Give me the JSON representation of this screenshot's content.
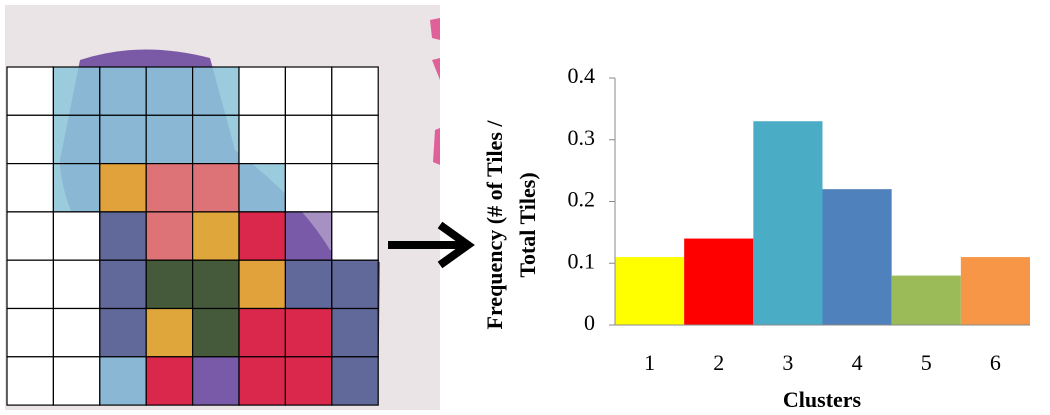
{
  "chart_data": {
    "type": "bar",
    "ylabel": [
      "Frequency (# of Tiles /",
      "Total Tiles)"
    ],
    "xlabel": "Clusters",
    "categories": [
      "1",
      "2",
      "3",
      "4",
      "5",
      "6"
    ],
    "values": [
      0.11,
      0.14,
      0.33,
      0.22,
      0.08,
      0.11
    ],
    "colors": [
      "#ffff00",
      "#ff0000",
      "#4bacc6",
      "#4f81bd",
      "#9bbb59",
      "#f79646"
    ],
    "ylim": [
      0,
      0.4
    ],
    "yticks": [
      0,
      0.1,
      0.2,
      0.3,
      0.4
    ]
  }
}
